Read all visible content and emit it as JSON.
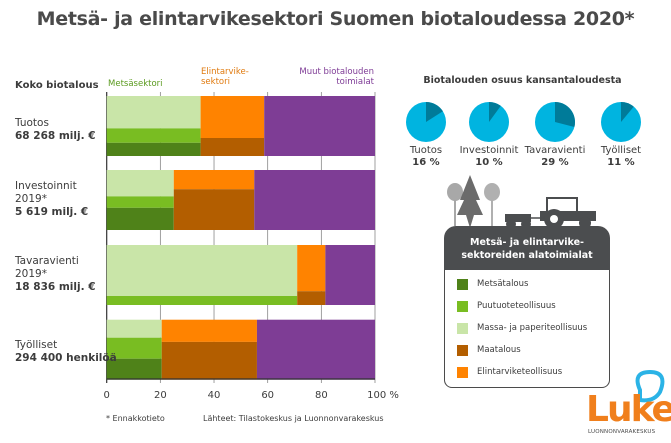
{
  "title": "Metsä- ja elintarvikesektori Suomen biotaloudessa 2020*",
  "chart_data": {
    "type": "bar",
    "subtype": "stacked-horizontal-mosaic-100pct",
    "title": "Metsä- ja elintarvikesektori Suomen biotaloudessa 2020*",
    "row_header": "Koko biotalous",
    "xlabel": "%",
    "xlim": [
      0,
      100
    ],
    "xticks": [
      "0",
      "20",
      "40",
      "60",
      "80",
      "100 %"
    ],
    "grid": true,
    "sector_headers": [
      {
        "name": "Metsäsektori",
        "color": "#5a9a1e"
      },
      {
        "name": "Elintarvike-\nsektori",
        "color": "#e07b10"
      },
      {
        "name": "Muut biotalouden\ntoimialat",
        "color": "#7e3b96"
      }
    ],
    "categories": [
      {
        "label": "Tuotos",
        "total": "68 268 milj. €"
      },
      {
        "label": "Investoinnit\n2019*",
        "total": "5 619 milj. €"
      },
      {
        "label": "Tavaravienti\n2019*",
        "total": "18 836  milj. €"
      },
      {
        "label": "Työlliset",
        "total": "294 400 henkilöä"
      }
    ],
    "series": [
      {
        "name": "Metsäsektori",
        "values": [
          35,
          25,
          71,
          20.5
        ],
        "sub_shares": {
          "Massa- ja paperiteollisuus": [
            0.54,
            0.44,
            0.85,
            0.3
          ],
          "Puutuoteteollisuus": [
            0.24,
            0.19,
            0.15,
            0.35
          ],
          "Metsätalous": [
            0.22,
            0.37,
            0.0,
            0.35
          ]
        }
      },
      {
        "name": "Elintarvikesektori",
        "values": [
          23.7,
          30,
          10.5,
          35.5
        ],
        "sub_shares": {
          "Elintarviketeollisuus": [
            0.7,
            0.32,
            0.77,
            0.37
          ],
          "Maatalous": [
            0.3,
            0.68,
            0.23,
            0.63
          ]
        }
      },
      {
        "name": "Muut biotalouden toimialat",
        "values": [
          41.3,
          45,
          18.5,
          44
        ]
      }
    ],
    "colors": {
      "Metsätalous": "#4f8219",
      "Puutuoteteollisuus": "#79bd22",
      "Massa- ja paperiteollisuus": "#c9e5a8",
      "Maatalous": "#b35e00",
      "Elintarviketeollisuus": "#ff8300",
      "Muut": "#7e3d95"
    },
    "pies": {
      "title": "Biotalouden osuus kansantaloudesta",
      "type": "pie",
      "items": [
        {
          "label": "Tuotos",
          "value": 16,
          "text": "16 %"
        },
        {
          "label": "Investoinnit",
          "value": 10,
          "text": "10 %"
        },
        {
          "label": "Tavaravienti",
          "value": 29,
          "text": "29 %"
        },
        {
          "label": "Työlliset",
          "value": 11,
          "text": "11 %"
        }
      ],
      "colors": {
        "share": "#007b99",
        "rest": "#00b4e0"
      }
    }
  },
  "legend": {
    "title": "Metsä- ja elintarvike-\nsektoreiden alatoimialat",
    "items": [
      {
        "label": "Metsätalous",
        "color": "#4f8219"
      },
      {
        "label": "Puutuoteteollisuus",
        "color": "#79bd22"
      },
      {
        "label": "Massa- ja paperiteollisuus",
        "color": "#c9e5a8"
      },
      {
        "label": "Maatalous",
        "color": "#b35e00"
      },
      {
        "label": "Elintarviketeollisuus",
        "color": "#ff8300"
      }
    ]
  },
  "footnote": "* Ennakkotieto",
  "source": "Lähteet: Tilastokeskus ja Luonnonvarakeskus",
  "logo": {
    "name": "Luke",
    "subtitle": "LUONNONVARAKESKUS"
  }
}
